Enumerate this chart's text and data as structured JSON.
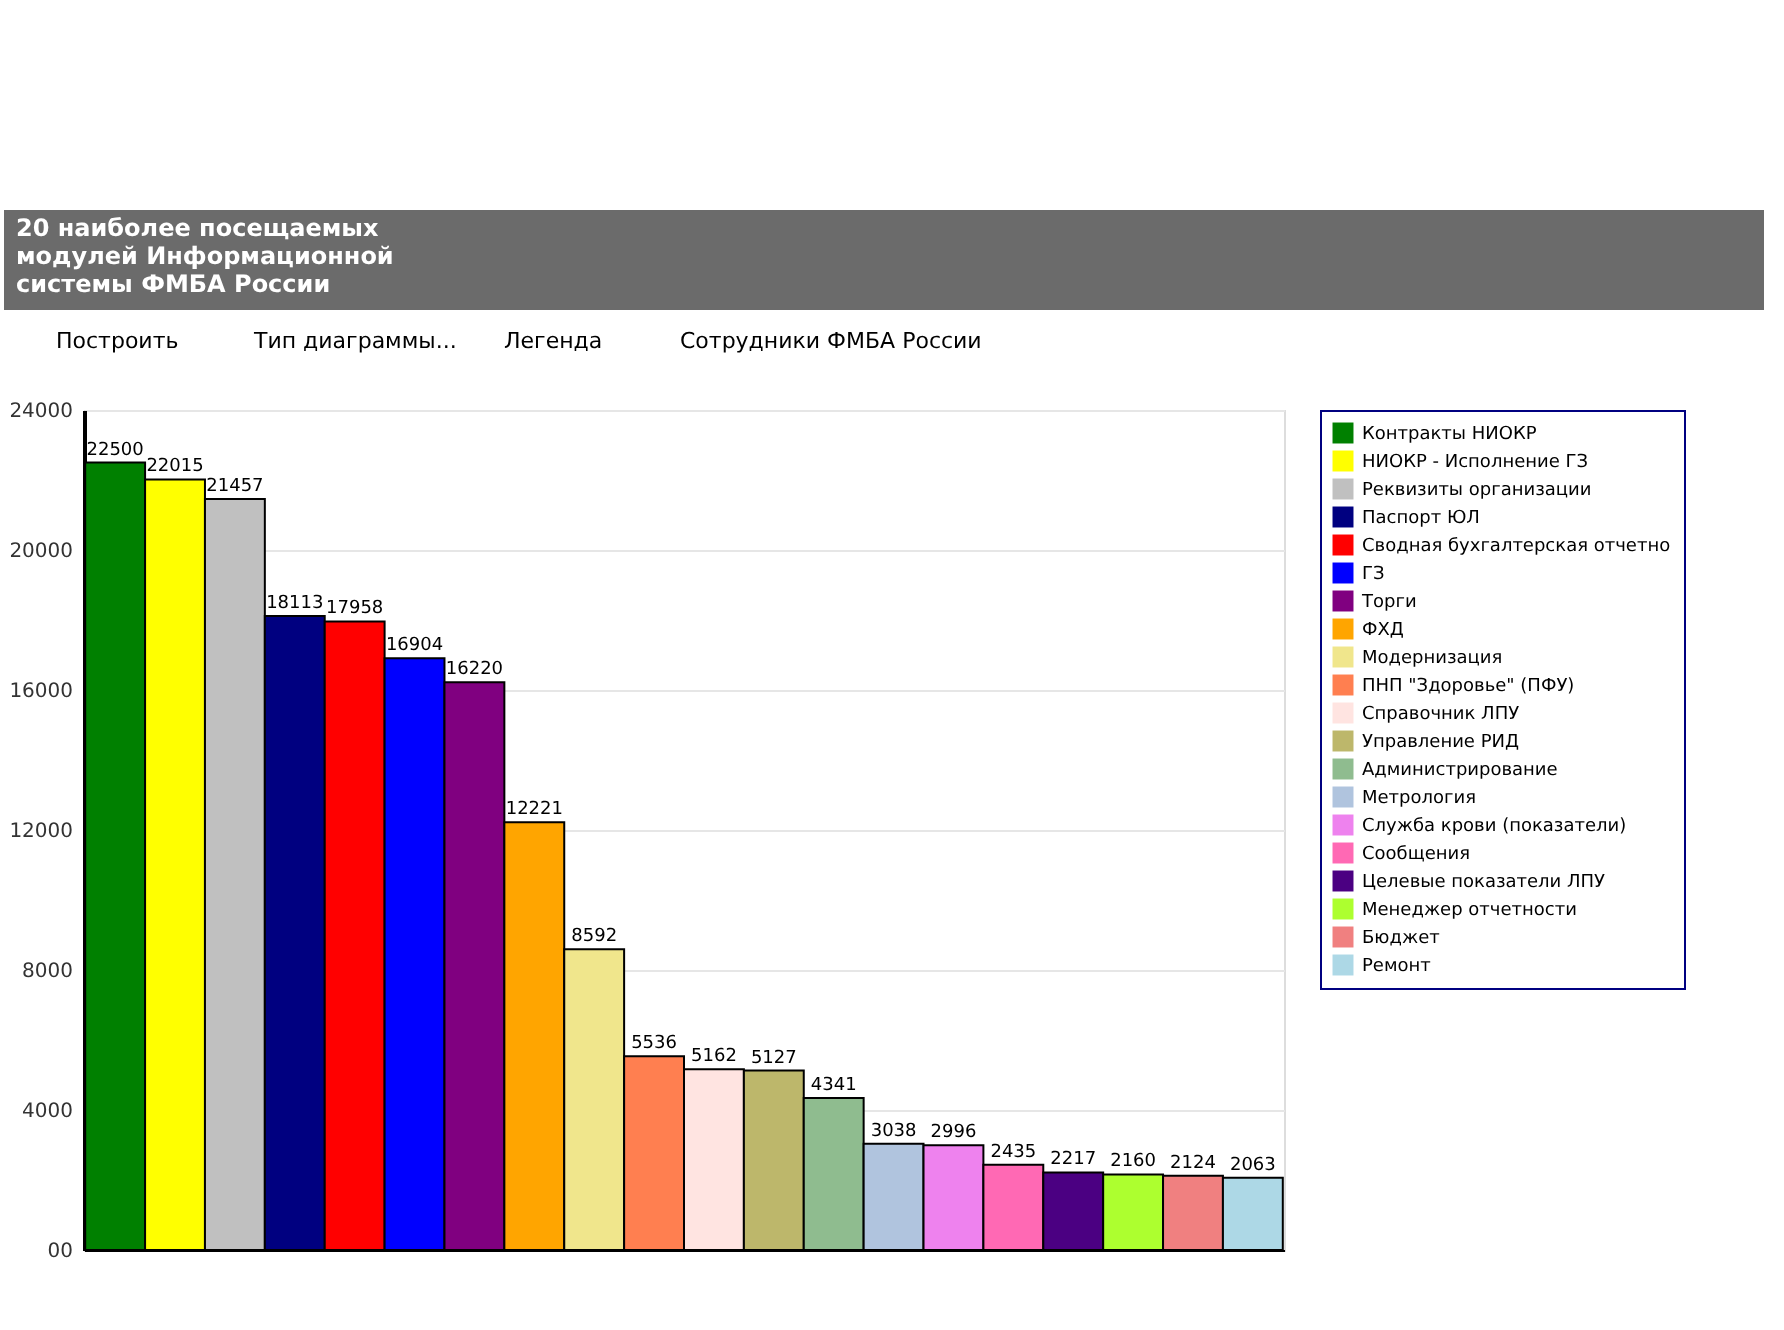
{
  "chart_data": {
    "type": "bar",
    "title": "20 наиболее посещаемых модулей Информационной системы ФМБА России",
    "annotations": [
      "Построить",
      "Тип диаграммы...",
      "Легенда",
      "Сотрудники ФМБА России"
    ],
    "categories": [
      null,
      null,
      null,
      null,
      null,
      null,
      null,
      null,
      null,
      null,
      null,
      null,
      null,
      null,
      null,
      null,
      null,
      null,
      null,
      null
    ],
    "series": [
      {
        "name": "Контракты НИОКР",
        "color": "#008000",
        "values": [
          22500,
          null,
          null,
          null,
          null,
          null,
          null,
          null,
          null,
          null,
          null,
          null,
          null,
          null,
          null,
          null,
          null,
          null,
          null,
          null
        ]
      },
      {
        "name": "НИОКР - Исполнение ГЗ",
        "color": "#ffff00",
        "values": [
          null,
          22015,
          null,
          null,
          null,
          null,
          null,
          null,
          null,
          null,
          null,
          null,
          null,
          null,
          null,
          null,
          null,
          null,
          null,
          null
        ]
      },
      {
        "name": "Реквизиты организации",
        "color": "#c0c0c0",
        "values": [
          null,
          null,
          21457,
          null,
          null,
          null,
          null,
          null,
          null,
          null,
          null,
          null,
          null,
          null,
          null,
          null,
          null,
          null,
          null,
          null
        ]
      },
      {
        "name": "Паспорт ЮЛ",
        "color": "#000080",
        "values": [
          null,
          null,
          null,
          18113,
          null,
          null,
          null,
          null,
          null,
          null,
          null,
          null,
          null,
          null,
          null,
          null,
          null,
          null,
          null,
          null
        ]
      },
      {
        "name": "Сводная бухгалтерская отчетно",
        "color": "#ff0000",
        "values": [
          null,
          null,
          null,
          null,
          17958,
          null,
          null,
          null,
          null,
          null,
          null,
          null,
          null,
          null,
          null,
          null,
          null,
          null,
          null,
          null
        ]
      },
      {
        "name": "ГЗ",
        "color": "#0000ff",
        "values": [
          null,
          null,
          null,
          null,
          null,
          16904,
          null,
          null,
          null,
          null,
          null,
          null,
          null,
          null,
          null,
          null,
          null,
          null,
          null,
          null
        ]
      },
      {
        "name": "Торги",
        "color": "#800080",
        "values": [
          null,
          null,
          null,
          null,
          null,
          null,
          16220,
          null,
          null,
          null,
          null,
          null,
          null,
          null,
          null,
          null,
          null,
          null,
          null,
          null
        ]
      },
      {
        "name": "ФХД",
        "color": "#ffa500",
        "values": [
          null,
          null,
          null,
          null,
          null,
          null,
          null,
          12221,
          null,
          null,
          null,
          null,
          null,
          null,
          null,
          null,
          null,
          null,
          null,
          null
        ]
      },
      {
        "name": "Модернизация",
        "color": "#f0e68c",
        "values": [
          null,
          null,
          null,
          null,
          null,
          null,
          null,
          null,
          8592,
          null,
          null,
          null,
          null,
          null,
          null,
          null,
          null,
          null,
          null,
          null
        ]
      },
      {
        "name": "ПНП \"Здоровье\" (ПФУ)",
        "color": "#ff7f50",
        "values": [
          null,
          null,
          null,
          null,
          null,
          null,
          null,
          null,
          null,
          5536,
          null,
          null,
          null,
          null,
          null,
          null,
          null,
          null,
          null,
          null
        ]
      },
      {
        "name": "Справочник ЛПУ",
        "color": "#ffe4e1",
        "values": [
          null,
          null,
          null,
          null,
          null,
          null,
          null,
          null,
          null,
          null,
          5162,
          null,
          null,
          null,
          null,
          null,
          null,
          null,
          null,
          null
        ]
      },
      {
        "name": "Управление РИД",
        "color": "#bdb76b",
        "values": [
          null,
          null,
          null,
          null,
          null,
          null,
          null,
          null,
          null,
          null,
          null,
          5127,
          null,
          null,
          null,
          null,
          null,
          null,
          null,
          null
        ]
      },
      {
        "name": "Администрирование",
        "color": "#8fbc8f",
        "values": [
          null,
          null,
          null,
          null,
          null,
          null,
          null,
          null,
          null,
          null,
          null,
          null,
          4341,
          null,
          null,
          null,
          null,
          null,
          null,
          null
        ]
      },
      {
        "name": "Метрология",
        "color": "#b0c4de",
        "values": [
          null,
          null,
          null,
          null,
          null,
          null,
          null,
          null,
          null,
          null,
          null,
          null,
          null,
          3038,
          null,
          null,
          null,
          null,
          null,
          null
        ]
      },
      {
        "name": "Служба крови (показатели)",
        "color": "#ee82ee",
        "values": [
          null,
          null,
          null,
          null,
          null,
          null,
          null,
          null,
          null,
          null,
          null,
          null,
          null,
          null,
          2996,
          null,
          null,
          null,
          null,
          null
        ]
      },
      {
        "name": "Сообщения",
        "color": "#ff69b4",
        "values": [
          null,
          null,
          null,
          null,
          null,
          null,
          null,
          null,
          null,
          null,
          null,
          null,
          null,
          null,
          null,
          2435,
          null,
          null,
          null,
          null
        ]
      },
      {
        "name": "Целевые показатели ЛПУ",
        "color": "#4b0082",
        "values": [
          null,
          null,
          null,
          null,
          null,
          null,
          null,
          null,
          null,
          null,
          null,
          null,
          null,
          null,
          null,
          null,
          2217,
          null,
          null,
          null
        ]
      },
      {
        "name": "Менеджер отчетности",
        "color": "#adff2f",
        "values": [
          null,
          null,
          null,
          null,
          null,
          null,
          null,
          null,
          null,
          null,
          null,
          null,
          null,
          null,
          null,
          null,
          null,
          2160,
          null,
          null
        ]
      },
      {
        "name": "Бюджет",
        "color": "#f08080",
        "values": [
          null,
          null,
          null,
          null,
          null,
          null,
          null,
          null,
          null,
          null,
          null,
          null,
          null,
          null,
          null,
          null,
          null,
          null,
          2124,
          null
        ]
      },
      {
        "name": "Ремонт",
        "color": "#add8e6",
        "values": [
          null,
          null,
          null,
          null,
          null,
          null,
          null,
          null,
          null,
          null,
          null,
          null,
          null,
          null,
          null,
          null,
          null,
          null,
          null,
          2063
        ]
      }
    ],
    "ylim": [
      0,
      24000
    ],
    "yticks": [
      {
        "value": 0,
        "label": "00"
      },
      4000,
      8000,
      12000,
      16000,
      20000,
      24000
    ],
    "grid": "y",
    "legend": "right",
    "data_labels": true,
    "tick_labels": "y"
  }
}
